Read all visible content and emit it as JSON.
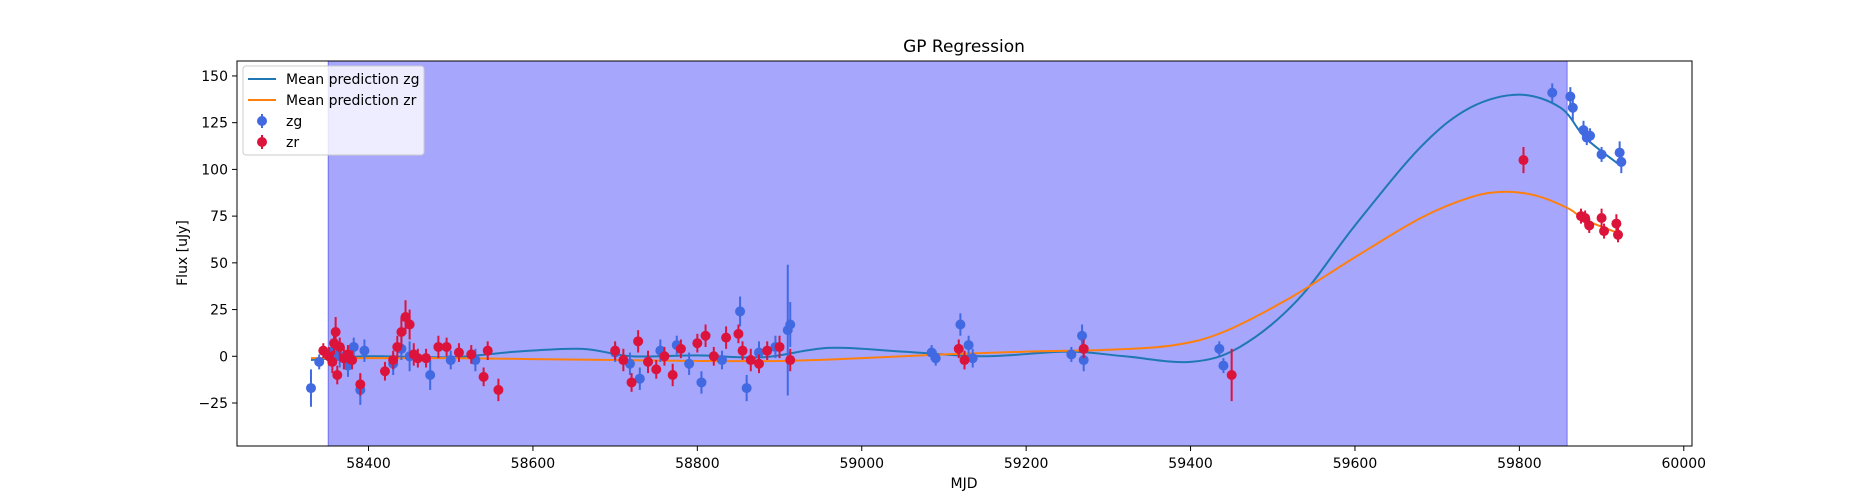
{
  "chart_data": {
    "type": "scatter",
    "title": "GP Regression",
    "xlabel": "MJD",
    "ylabel": "Flux [uJy]",
    "xlim": [
      58240,
      60010
    ],
    "ylim": [
      -48,
      158
    ],
    "xticks": [
      58400,
      58600,
      58800,
      59000,
      59200,
      59400,
      59600,
      59800,
      60000
    ],
    "yticks": [
      -25,
      0,
      25,
      50,
      75,
      100,
      125,
      150
    ],
    "grid": false,
    "legend_position": "top-left",
    "shaded_region": {
      "x0": 58351,
      "x1": 59858,
      "color": "#a6a6fc"
    },
    "colors": {
      "zg_line": "#1f77b4",
      "zr_line": "#ff7f0e",
      "zg_points": "#4169e1",
      "zr_points": "#dc143c"
    },
    "legend": [
      "Mean prediction zg",
      "Mean prediction zr",
      "zg",
      "zr"
    ],
    "lines": [
      {
        "name": "Mean prediction zg",
        "x": [
          58330,
          58400,
          58500,
          58580,
          58660,
          58720,
          58800,
          58880,
          58960,
          59050,
          59150,
          59250,
          59320,
          59400,
          59460,
          59530,
          59600,
          59680,
          59740,
          59800,
          59850,
          59880,
          59920
        ],
        "y": [
          -2,
          0,
          -0.5,
          2.5,
          4,
          0,
          0.5,
          -0.5,
          4.5,
          2.5,
          0,
          2.5,
          0,
          -3,
          5,
          30,
          70,
          112,
          133,
          140,
          133,
          117,
          103
        ]
      },
      {
        "name": "Mean prediction zr",
        "x": [
          58330,
          58400,
          58500,
          58600,
          58700,
          58800,
          58900,
          59000,
          59100,
          59200,
          59300,
          59380,
          59440,
          59520,
          59600,
          59680,
          59740,
          59780,
          59820,
          59860,
          59880,
          59920
        ],
        "y": [
          -1,
          -1,
          -1,
          -1.5,
          -2,
          -2.5,
          -2.5,
          -1,
          1,
          2.5,
          3.5,
          6,
          13,
          31,
          53,
          74,
          85,
          88,
          86,
          79,
          73,
          66
        ]
      }
    ],
    "series": [
      {
        "name": "zg",
        "points": [
          [
            58330,
            -17,
            10
          ],
          [
            58340,
            -3,
            4
          ],
          [
            58355,
            2,
            5
          ],
          [
            58360,
            3,
            4
          ],
          [
            58365,
            0,
            6
          ],
          [
            58375,
            -5,
            6
          ],
          [
            58382,
            5,
            5
          ],
          [
            58390,
            -18,
            8
          ],
          [
            58395,
            3,
            6
          ],
          [
            58430,
            -4,
            6
          ],
          [
            58440,
            4,
            6
          ],
          [
            58450,
            0,
            8
          ],
          [
            58475,
            -10,
            8
          ],
          [
            58500,
            -2,
            5
          ],
          [
            58530,
            -2,
            6
          ],
          [
            58700,
            2,
            5
          ],
          [
            58718,
            -4,
            6
          ],
          [
            58730,
            -12,
            6
          ],
          [
            58755,
            3,
            6
          ],
          [
            58775,
            6,
            5
          ],
          [
            58790,
            -4,
            6
          ],
          [
            58805,
            -14,
            6
          ],
          [
            58830,
            -2,
            5
          ],
          [
            58852,
            24,
            8
          ],
          [
            58860,
            -17,
            7
          ],
          [
            58875,
            2,
            6
          ],
          [
            58895,
            5,
            6
          ],
          [
            58910,
            14,
            35
          ],
          [
            58913,
            17,
            12
          ],
          [
            59085,
            2,
            4
          ],
          [
            59090,
            -1,
            4
          ],
          [
            59120,
            17,
            6
          ],
          [
            59130,
            6,
            5
          ],
          [
            59135,
            -1,
            5
          ],
          [
            59255,
            1,
            4
          ],
          [
            59268,
            11,
            6
          ],
          [
            59270,
            -2,
            6
          ],
          [
            59435,
            4,
            4
          ],
          [
            59440,
            -5,
            4
          ],
          [
            59840,
            141,
            5
          ],
          [
            59862,
            139,
            5
          ],
          [
            59865,
            133,
            7
          ],
          [
            59878,
            121,
            5
          ],
          [
            59882,
            117,
            4
          ],
          [
            59886,
            118,
            4
          ],
          [
            59900,
            108,
            4
          ],
          [
            59922,
            109,
            6
          ],
          [
            59924,
            104,
            6
          ]
        ]
      },
      {
        "name": "zr",
        "points": [
          [
            58345,
            3,
            4
          ],
          [
            58352,
            0,
            5
          ],
          [
            58356,
            -3,
            6
          ],
          [
            58358,
            7,
            6
          ],
          [
            58360,
            13,
            8
          ],
          [
            58362,
            -10,
            5
          ],
          [
            58365,
            5,
            5
          ],
          [
            58370,
            -1,
            6
          ],
          [
            58375,
            1,
            5
          ],
          [
            58380,
            -2,
            5
          ],
          [
            58390,
            -15,
            6
          ],
          [
            58420,
            -8,
            5
          ],
          [
            58430,
            -2,
            5
          ],
          [
            58435,
            5,
            6
          ],
          [
            58440,
            13,
            8
          ],
          [
            58445,
            21,
            9
          ],
          [
            58450,
            17,
            8
          ],
          [
            58455,
            1,
            6
          ],
          [
            58460,
            -1,
            5
          ],
          [
            58470,
            -1,
            5
          ],
          [
            58485,
            5,
            6
          ],
          [
            58495,
            5,
            5
          ],
          [
            58510,
            2,
            5
          ],
          [
            58525,
            1,
            5
          ],
          [
            58540,
            -11,
            5
          ],
          [
            58545,
            3,
            5
          ],
          [
            58558,
            -18,
            6
          ],
          [
            58700,
            3,
            5
          ],
          [
            58710,
            -2,
            6
          ],
          [
            58720,
            -14,
            5
          ],
          [
            58728,
            8,
            6
          ],
          [
            58740,
            -3,
            6
          ],
          [
            58750,
            -7,
            5
          ],
          [
            58760,
            0,
            5
          ],
          [
            58770,
            -10,
            6
          ],
          [
            58780,
            4,
            5
          ],
          [
            58800,
            7,
            5
          ],
          [
            58810,
            11,
            6
          ],
          [
            58820,
            0,
            5
          ],
          [
            58835,
            10,
            6
          ],
          [
            58850,
            12,
            5
          ],
          [
            58855,
            3,
            5
          ],
          [
            58865,
            -2,
            6
          ],
          [
            58875,
            -4,
            5
          ],
          [
            58885,
            3,
            5
          ],
          [
            58900,
            5,
            6
          ],
          [
            58913,
            -2,
            6
          ],
          [
            59118,
            4,
            5
          ],
          [
            59125,
            -2,
            5
          ],
          [
            59270,
            4,
            5
          ],
          [
            59450,
            -10,
            14
          ],
          [
            59805,
            105,
            7
          ],
          [
            59875,
            75,
            4
          ],
          [
            59880,
            74,
            4
          ],
          [
            59885,
            70,
            4
          ],
          [
            59900,
            74,
            5
          ],
          [
            59903,
            67,
            4
          ],
          [
            59918,
            71,
            5
          ],
          [
            59920,
            65,
            4
          ]
        ]
      }
    ]
  }
}
